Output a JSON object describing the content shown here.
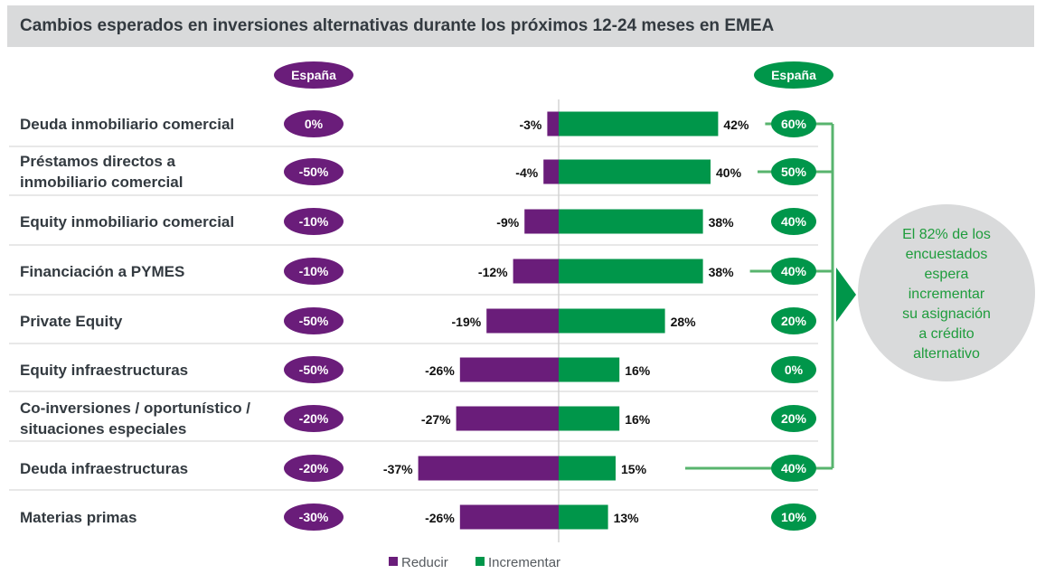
{
  "title": "Cambios esperados en inversiones alternativas durante los próximos 12-24 meses en EMEA",
  "colors": {
    "reducir": "#6a1d7a",
    "incrementar": "#00964a",
    "callout_bg": "#d9dadb",
    "connector": "#58b46e"
  },
  "header_badges": {
    "left": "España",
    "right": "España"
  },
  "legend": [
    {
      "label": "Reducir",
      "color": "#6a1d7a"
    },
    {
      "label": "Incrementar",
      "color": "#00964a"
    }
  ],
  "callout": {
    "lines": [
      "El 82% de los",
      "encuestados",
      "espera",
      "incrementar",
      "su asignación",
      "a crédito",
      "alternativo"
    ]
  },
  "chart_data": {
    "type": "bar",
    "orientation": "horizontal-diverging",
    "title": "Cambios esperados en inversiones alternativas durante los próximos 12-24 meses en EMEA",
    "categories": [
      [
        "Deuda inmobiliario comercial"
      ],
      [
        "Préstamos directos a",
        "inmobiliario comercial"
      ],
      [
        "Equity inmobiliario comercial"
      ],
      [
        "Financiación a PYMES"
      ],
      [
        "Private Equity"
      ],
      [
        "Equity infraestructuras"
      ],
      [
        "Co-inversiones / oportunístico /",
        "situaciones especiales"
      ],
      [
        "Deuda infraestructuras"
      ],
      [
        "Materias primas"
      ]
    ],
    "series": [
      {
        "name": "Reducir",
        "values": [
          -3,
          -4,
          -9,
          -12,
          -19,
          -26,
          -27,
          -37,
          -26
        ],
        "labels": [
          "-3%",
          "-4%",
          "-9%",
          "-12%",
          "-19%",
          "-26%",
          "-27%",
          "-37%",
          "-26%"
        ]
      },
      {
        "name": "Incrementar",
        "values": [
          42,
          40,
          38,
          38,
          28,
          16,
          16,
          15,
          13
        ],
        "labels": [
          "42%",
          "40%",
          "38%",
          "38%",
          "28%",
          "16%",
          "16%",
          "15%",
          "13%"
        ]
      }
    ],
    "espana_reducir": [
      "0%",
      "-50%",
      "-10%",
      "-10%",
      "-50%",
      "-50%",
      "-20%",
      "-20%",
      "-30%"
    ],
    "espana_incrementar": [
      "60%",
      "50%",
      "40%",
      "40%",
      "20%",
      "0%",
      "20%",
      "40%",
      "10%"
    ],
    "highlighted_rows": [
      0,
      1,
      3,
      7
    ]
  }
}
